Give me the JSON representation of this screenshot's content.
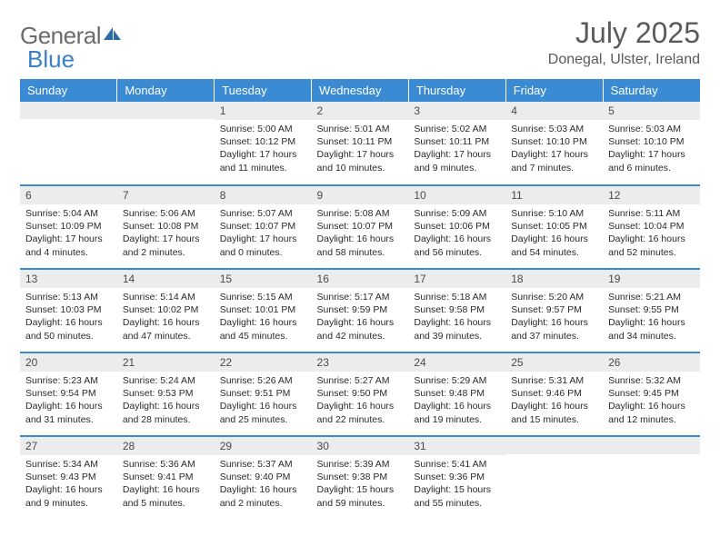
{
  "logo": {
    "word1": "General",
    "word2": "Blue"
  },
  "title": "July 2025",
  "location": "Donegal, Ulster, Ireland",
  "colors": {
    "header_bg": "#3b8bd4",
    "header_text": "#ffffff",
    "daynum_bg": "#ececec",
    "border": "#3b8bd4",
    "logo_gray": "#6b6b6b",
    "logo_blue": "#3b7fc4"
  },
  "weekdays": [
    "Sunday",
    "Monday",
    "Tuesday",
    "Wednesday",
    "Thursday",
    "Friday",
    "Saturday"
  ],
  "weeks": [
    [
      {
        "n": "",
        "sr": "",
        "ss": "",
        "dl": ""
      },
      {
        "n": "",
        "sr": "",
        "ss": "",
        "dl": ""
      },
      {
        "n": "1",
        "sr": "Sunrise: 5:00 AM",
        "ss": "Sunset: 10:12 PM",
        "dl": "Daylight: 17 hours and 11 minutes."
      },
      {
        "n": "2",
        "sr": "Sunrise: 5:01 AM",
        "ss": "Sunset: 10:11 PM",
        "dl": "Daylight: 17 hours and 10 minutes."
      },
      {
        "n": "3",
        "sr": "Sunrise: 5:02 AM",
        "ss": "Sunset: 10:11 PM",
        "dl": "Daylight: 17 hours and 9 minutes."
      },
      {
        "n": "4",
        "sr": "Sunrise: 5:03 AM",
        "ss": "Sunset: 10:10 PM",
        "dl": "Daylight: 17 hours and 7 minutes."
      },
      {
        "n": "5",
        "sr": "Sunrise: 5:03 AM",
        "ss": "Sunset: 10:10 PM",
        "dl": "Daylight: 17 hours and 6 minutes."
      }
    ],
    [
      {
        "n": "6",
        "sr": "Sunrise: 5:04 AM",
        "ss": "Sunset: 10:09 PM",
        "dl": "Daylight: 17 hours and 4 minutes."
      },
      {
        "n": "7",
        "sr": "Sunrise: 5:06 AM",
        "ss": "Sunset: 10:08 PM",
        "dl": "Daylight: 17 hours and 2 minutes."
      },
      {
        "n": "8",
        "sr": "Sunrise: 5:07 AM",
        "ss": "Sunset: 10:07 PM",
        "dl": "Daylight: 17 hours and 0 minutes."
      },
      {
        "n": "9",
        "sr": "Sunrise: 5:08 AM",
        "ss": "Sunset: 10:07 PM",
        "dl": "Daylight: 16 hours and 58 minutes."
      },
      {
        "n": "10",
        "sr": "Sunrise: 5:09 AM",
        "ss": "Sunset: 10:06 PM",
        "dl": "Daylight: 16 hours and 56 minutes."
      },
      {
        "n": "11",
        "sr": "Sunrise: 5:10 AM",
        "ss": "Sunset: 10:05 PM",
        "dl": "Daylight: 16 hours and 54 minutes."
      },
      {
        "n": "12",
        "sr": "Sunrise: 5:11 AM",
        "ss": "Sunset: 10:04 PM",
        "dl": "Daylight: 16 hours and 52 minutes."
      }
    ],
    [
      {
        "n": "13",
        "sr": "Sunrise: 5:13 AM",
        "ss": "Sunset: 10:03 PM",
        "dl": "Daylight: 16 hours and 50 minutes."
      },
      {
        "n": "14",
        "sr": "Sunrise: 5:14 AM",
        "ss": "Sunset: 10:02 PM",
        "dl": "Daylight: 16 hours and 47 minutes."
      },
      {
        "n": "15",
        "sr": "Sunrise: 5:15 AM",
        "ss": "Sunset: 10:01 PM",
        "dl": "Daylight: 16 hours and 45 minutes."
      },
      {
        "n": "16",
        "sr": "Sunrise: 5:17 AM",
        "ss": "Sunset: 9:59 PM",
        "dl": "Daylight: 16 hours and 42 minutes."
      },
      {
        "n": "17",
        "sr": "Sunrise: 5:18 AM",
        "ss": "Sunset: 9:58 PM",
        "dl": "Daylight: 16 hours and 39 minutes."
      },
      {
        "n": "18",
        "sr": "Sunrise: 5:20 AM",
        "ss": "Sunset: 9:57 PM",
        "dl": "Daylight: 16 hours and 37 minutes."
      },
      {
        "n": "19",
        "sr": "Sunrise: 5:21 AM",
        "ss": "Sunset: 9:55 PM",
        "dl": "Daylight: 16 hours and 34 minutes."
      }
    ],
    [
      {
        "n": "20",
        "sr": "Sunrise: 5:23 AM",
        "ss": "Sunset: 9:54 PM",
        "dl": "Daylight: 16 hours and 31 minutes."
      },
      {
        "n": "21",
        "sr": "Sunrise: 5:24 AM",
        "ss": "Sunset: 9:53 PM",
        "dl": "Daylight: 16 hours and 28 minutes."
      },
      {
        "n": "22",
        "sr": "Sunrise: 5:26 AM",
        "ss": "Sunset: 9:51 PM",
        "dl": "Daylight: 16 hours and 25 minutes."
      },
      {
        "n": "23",
        "sr": "Sunrise: 5:27 AM",
        "ss": "Sunset: 9:50 PM",
        "dl": "Daylight: 16 hours and 22 minutes."
      },
      {
        "n": "24",
        "sr": "Sunrise: 5:29 AM",
        "ss": "Sunset: 9:48 PM",
        "dl": "Daylight: 16 hours and 19 minutes."
      },
      {
        "n": "25",
        "sr": "Sunrise: 5:31 AM",
        "ss": "Sunset: 9:46 PM",
        "dl": "Daylight: 16 hours and 15 minutes."
      },
      {
        "n": "26",
        "sr": "Sunrise: 5:32 AM",
        "ss": "Sunset: 9:45 PM",
        "dl": "Daylight: 16 hours and 12 minutes."
      }
    ],
    [
      {
        "n": "27",
        "sr": "Sunrise: 5:34 AM",
        "ss": "Sunset: 9:43 PM",
        "dl": "Daylight: 16 hours and 9 minutes."
      },
      {
        "n": "28",
        "sr": "Sunrise: 5:36 AM",
        "ss": "Sunset: 9:41 PM",
        "dl": "Daylight: 16 hours and 5 minutes."
      },
      {
        "n": "29",
        "sr": "Sunrise: 5:37 AM",
        "ss": "Sunset: 9:40 PM",
        "dl": "Daylight: 16 hours and 2 minutes."
      },
      {
        "n": "30",
        "sr": "Sunrise: 5:39 AM",
        "ss": "Sunset: 9:38 PM",
        "dl": "Daylight: 15 hours and 59 minutes."
      },
      {
        "n": "31",
        "sr": "Sunrise: 5:41 AM",
        "ss": "Sunset: 9:36 PM",
        "dl": "Daylight: 15 hours and 55 minutes."
      },
      {
        "n": "",
        "sr": "",
        "ss": "",
        "dl": ""
      },
      {
        "n": "",
        "sr": "",
        "ss": "",
        "dl": ""
      }
    ]
  ]
}
